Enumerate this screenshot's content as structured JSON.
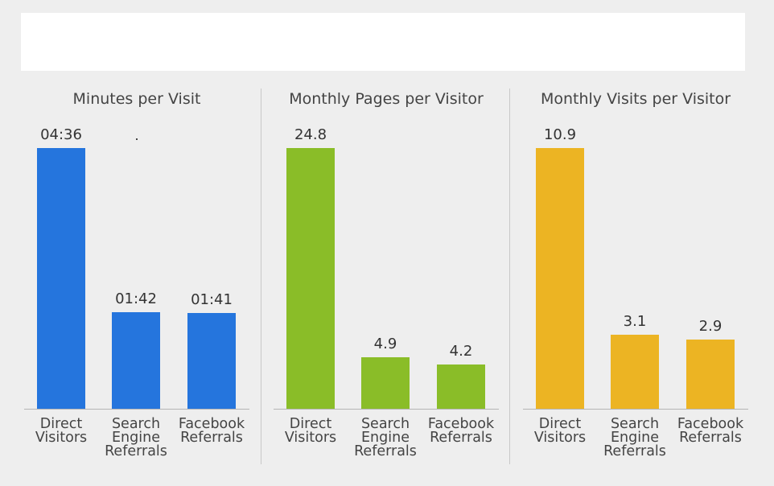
{
  "chart_data": [
    {
      "type": "bar",
      "title": "Minutes per Visit",
      "categories": [
        "Direct Visitors",
        "Search Engine Referrals",
        "Facebook Referrals"
      ],
      "category_lines": [
        [
          "Direct",
          "Visitors"
        ],
        [
          "Search",
          "Engine",
          "Referrals"
        ],
        [
          "Facebook",
          "Referrals"
        ]
      ],
      "values": [
        276,
        102,
        101
      ],
      "value_labels": [
        "04:36",
        "01:42",
        "01:41"
      ],
      "ylim": [
        0,
        276
      ],
      "color": "#2575dd",
      "xlabel": "",
      "ylabel": ""
    },
    {
      "type": "bar",
      "title": "Monthly Pages per Visitor",
      "categories": [
        "Direct Visitors",
        "Search Engine Referrals",
        "Facebook Referrals"
      ],
      "category_lines": [
        [
          "Direct",
          "Visitors"
        ],
        [
          "Search",
          "Engine",
          "Referrals"
        ],
        [
          "Facebook",
          "Referrals"
        ]
      ],
      "values": [
        24.8,
        4.9,
        4.2
      ],
      "value_labels": [
        "24.8",
        "4.9",
        "4.2"
      ],
      "ylim": [
        0,
        24.8
      ],
      "color": "#8abd28",
      "xlabel": "",
      "ylabel": ""
    },
    {
      "type": "bar",
      "title": "Monthly Visits per Visitor",
      "categories": [
        "Direct Visitors",
        "Search Engine Referrals",
        "Facebook Referrals"
      ],
      "category_lines": [
        [
          "Direct",
          "Visitors"
        ],
        [
          "Search",
          "Engine",
          "Referrals"
        ],
        [
          "Facebook",
          "Referrals"
        ]
      ],
      "values": [
        10.9,
        3.1,
        2.9
      ],
      "value_labels": [
        "10.9",
        "3.1",
        "2.9"
      ],
      "ylim": [
        0,
        10.9
      ],
      "color": "#ecb423",
      "xlabel": "",
      "ylabel": ""
    }
  ]
}
